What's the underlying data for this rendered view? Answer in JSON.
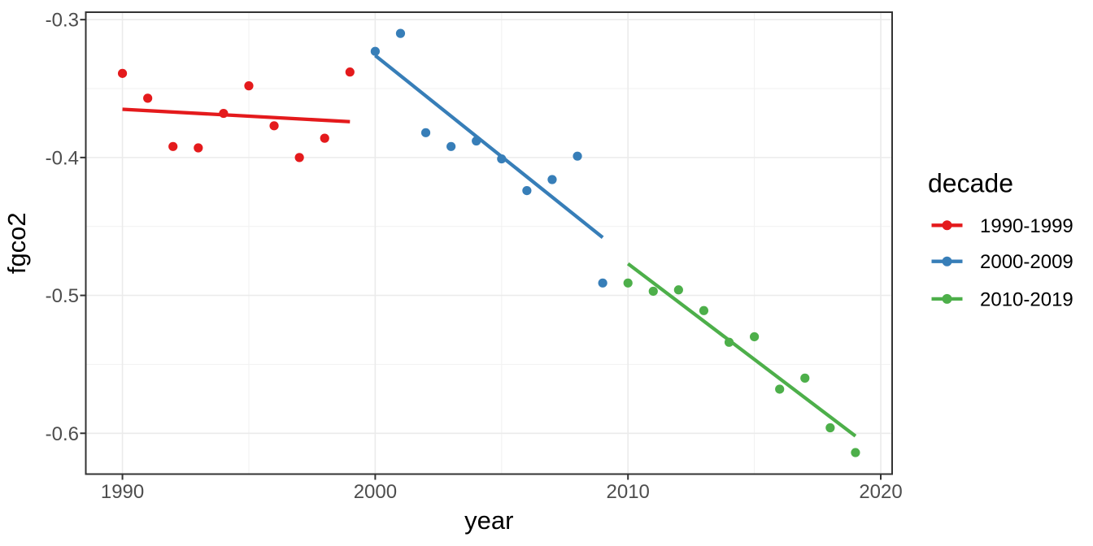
{
  "chart_data": {
    "type": "scatter",
    "title": "",
    "xlabel": "year",
    "ylabel": "fgco2",
    "legend_title": "decade",
    "legend_position": "right",
    "grid": true,
    "trend_lines": true,
    "xlim": [
      1988.55,
      2020.45
    ],
    "ylim": [
      -0.6296,
      -0.2946
    ],
    "x_ticks": [
      {
        "value": 1990,
        "label": "1990"
      },
      {
        "value": 2000,
        "label": "2000"
      },
      {
        "value": 2010,
        "label": "2010"
      },
      {
        "value": 2020,
        "label": "2020"
      }
    ],
    "y_ticks": [
      {
        "value": -0.3,
        "label": "-0.3"
      },
      {
        "value": -0.4,
        "label": "-0.4"
      },
      {
        "value": -0.5,
        "label": "-0.5"
      },
      {
        "value": -0.6,
        "label": "-0.6"
      }
    ],
    "x_minor_ticks": [
      1995,
      2005,
      2015
    ],
    "y_minor_ticks": [
      -0.35,
      -0.45,
      -0.55
    ],
    "series": [
      {
        "name": "1990-1999",
        "color": "#E41A1C",
        "x": [
          1990,
          1991,
          1992,
          1993,
          1994,
          1995,
          1996,
          1997,
          1998,
          1999
        ],
        "y": [
          -0.339,
          -0.357,
          -0.392,
          -0.393,
          -0.368,
          -0.348,
          -0.377,
          -0.4,
          -0.386,
          -0.338
        ],
        "trend": {
          "x": [
            1990,
            1999
          ],
          "y": [
            -0.365,
            -0.374
          ]
        }
      },
      {
        "name": "2000-2009",
        "color": "#377EB8",
        "x": [
          2000,
          2001,
          2002,
          2003,
          2004,
          2005,
          2006,
          2007,
          2008,
          2009
        ],
        "y": [
          -0.323,
          -0.31,
          -0.382,
          -0.392,
          -0.388,
          -0.401,
          -0.424,
          -0.416,
          -0.399,
          -0.491
        ],
        "trend": {
          "x": [
            2000,
            2009
          ],
          "y": [
            -0.326,
            -0.458
          ]
        }
      },
      {
        "name": "2010-2019",
        "color": "#4DAF4A",
        "x": [
          2010,
          2011,
          2012,
          2013,
          2014,
          2015,
          2016,
          2017,
          2018,
          2019
        ],
        "y": [
          -0.491,
          -0.497,
          -0.496,
          -0.511,
          -0.534,
          -0.53,
          -0.568,
          -0.56,
          -0.596,
          -0.614
        ],
        "trend": {
          "x": [
            2010,
            2019
          ],
          "y": [
            -0.477,
            -0.602
          ]
        }
      }
    ]
  }
}
